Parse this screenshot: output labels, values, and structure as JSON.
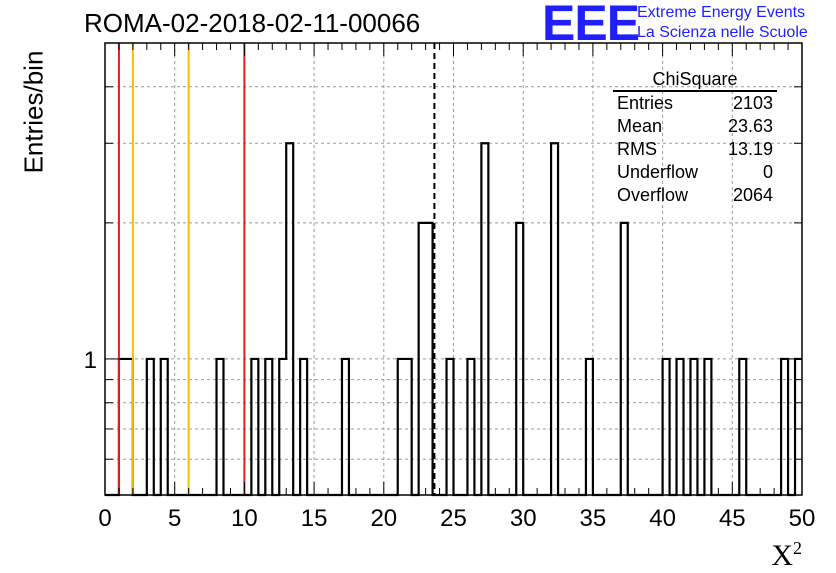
{
  "header": {
    "title": "ROMA-02-2018-02-11-00066",
    "logo_text": "EEE",
    "logo_line1": "Extreme Energy Events",
    "logo_line2": "La Scienza nelle Scuole"
  },
  "stats": {
    "title": "ChiSquare",
    "rows": [
      {
        "label": "Entries",
        "value": "2103"
      },
      {
        "label": "Mean",
        "value": "23.63"
      },
      {
        "label": "RMS",
        "value": "13.19"
      },
      {
        "label": "Underflow",
        "value": "0"
      },
      {
        "label": "Overflow",
        "value": "2064"
      }
    ]
  },
  "chart_data": {
    "type": "histogram",
    "title": "ROMA-02-2018-02-11-00066",
    "xlabel": "X",
    "xlabel_sup": "2",
    "ylabel": "Entries/bin",
    "xlim": [
      0,
      50
    ],
    "ylim": [
      0.5,
      5
    ],
    "yscale": "log",
    "bin_width": 0.5,
    "grid": true,
    "x_ticks": [
      0,
      5,
      10,
      15,
      20,
      25,
      30,
      35,
      40,
      45,
      50
    ],
    "y_tick_labels": [
      {
        "value": 1,
        "label": "1"
      }
    ],
    "bins": [
      {
        "x": 1.0,
        "count": 1
      },
      {
        "x": 1.5,
        "count": 1
      },
      {
        "x": 3.0,
        "count": 1
      },
      {
        "x": 4.0,
        "count": 1
      },
      {
        "x": 8.0,
        "count": 1
      },
      {
        "x": 10.5,
        "count": 1
      },
      {
        "x": 11.5,
        "count": 1
      },
      {
        "x": 12.5,
        "count": 1
      },
      {
        "x": 13.0,
        "count": 3
      },
      {
        "x": 14.0,
        "count": 1
      },
      {
        "x": 17.0,
        "count": 1
      },
      {
        "x": 21.0,
        "count": 1
      },
      {
        "x": 21.5,
        "count": 1
      },
      {
        "x": 22.5,
        "count": 2
      },
      {
        "x": 23.0,
        "count": 2
      },
      {
        "x": 24.5,
        "count": 1
      },
      {
        "x": 26.0,
        "count": 1
      },
      {
        "x": 27.0,
        "count": 3
      },
      {
        "x": 29.5,
        "count": 2
      },
      {
        "x": 32.0,
        "count": 3
      },
      {
        "x": 34.5,
        "count": 1
      },
      {
        "x": 37.0,
        "count": 2
      },
      {
        "x": 40.0,
        "count": 1
      },
      {
        "x": 41.0,
        "count": 1
      },
      {
        "x": 42.0,
        "count": 1
      },
      {
        "x": 43.0,
        "count": 1
      },
      {
        "x": 45.5,
        "count": 1
      },
      {
        "x": 48.5,
        "count": 1
      },
      {
        "x": 49.5,
        "count": 1
      }
    ],
    "reference_lines": [
      {
        "x": 1.0,
        "color": "#e02020",
        "style": "solid"
      },
      {
        "x": 2.0,
        "color": "#f0c000",
        "style": "solid"
      },
      {
        "x": 6.0,
        "color": "#f0c000",
        "style": "solid"
      },
      {
        "x": 10.0,
        "color": "#e02020",
        "style": "solid"
      },
      {
        "x": 23.63,
        "color": "#000000",
        "style": "dashed"
      }
    ]
  }
}
